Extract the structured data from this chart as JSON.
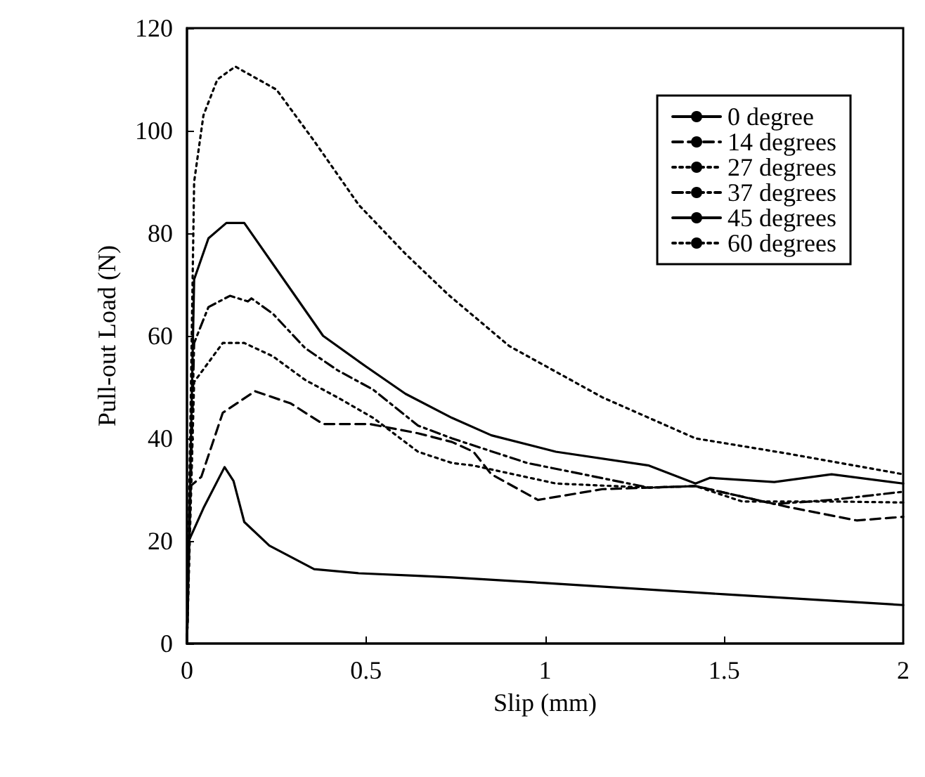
{
  "chart_data": {
    "type": "line",
    "xlabel": "Slip (mm)",
    "ylabel": "Pull-out Load (N)",
    "xlim": [
      0,
      2
    ],
    "xticks": [
      0,
      0.5,
      1,
      1.5,
      2
    ],
    "ylim": [
      0,
      120
    ],
    "yticks": [
      0,
      20,
      40,
      60,
      80,
      100,
      120
    ],
    "grid": false,
    "legend": "top right",
    "marker": "none",
    "series": [
      {
        "name": "0 degree",
        "color": "#000000",
        "line_style": "solid",
        "x": [
          0,
          0.005,
          0.046,
          0.105,
          0.13,
          0.16,
          0.23,
          0.355,
          0.48,
          0.645,
          0.74,
          1.0,
          1.5,
          2.0
        ],
        "values": [
          0,
          20,
          26.4,
          34.4,
          31.7,
          23.7,
          19.1,
          14.5,
          13.7,
          13.2,
          12.9,
          11.8,
          9.6,
          7.5
        ]
      },
      {
        "name": "14 degrees",
        "color": "#000000",
        "line_style": "dashed",
        "x": [
          0,
          0.01,
          0.04,
          0.1,
          0.19,
          0.29,
          0.38,
          0.51,
          0.645,
          0.74,
          0.8,
          0.85,
          0.98,
          1.16,
          1.42,
          1.68,
          1.87,
          2.0
        ],
        "values": [
          0,
          30.7,
          32.5,
          45,
          49.2,
          46.8,
          42.8,
          42.8,
          41,
          39.3,
          37.4,
          33,
          28,
          30.1,
          30.7,
          26.6,
          24,
          24.7
        ]
      },
      {
        "name": "27 degrees",
        "color": "#000000",
        "line_style": "dotted",
        "x": [
          0,
          0.02,
          0.1,
          0.16,
          0.24,
          0.33,
          0.42,
          0.52,
          0.645,
          0.74,
          0.8,
          1.03,
          1.29,
          1.42,
          1.55,
          1.8,
          2.0
        ],
        "values": [
          0,
          51,
          58.6,
          58.6,
          56,
          51.4,
          48,
          44,
          37.4,
          35.2,
          34.7,
          31.2,
          30.4,
          30.7,
          27.7,
          27.7,
          27.5
        ]
      },
      {
        "name": "37 degrees",
        "color": "#000000",
        "line_style": "dashdot",
        "x": [
          0,
          0.02,
          0.06,
          0.12,
          0.17,
          0.18,
          0.24,
          0.33,
          0.42,
          0.52,
          0.645,
          0.74,
          0.95,
          1.29,
          1.42,
          1.64,
          1.8,
          2.0
        ],
        "values": [
          0,
          58.6,
          65.6,
          67.8,
          66.7,
          67.3,
          64.3,
          57.6,
          53.3,
          49.5,
          42.5,
          40,
          35.2,
          30.4,
          30.7,
          27.2,
          28,
          29.6
        ]
      },
      {
        "name": "45 degrees",
        "color": "#000000",
        "line_style": "solid",
        "x": [
          0,
          0.02,
          0.06,
          0.11,
          0.16,
          0.28,
          0.38,
          0.5,
          0.61,
          0.74,
          0.85,
          1.03,
          1.29,
          1.42,
          1.46,
          1.64,
          1.8,
          2.0
        ],
        "values": [
          0,
          71,
          79,
          82,
          82,
          70,
          60,
          54,
          48.7,
          44,
          40.6,
          37.4,
          34.7,
          31.2,
          32.3,
          31.5,
          33,
          31.2
        ]
      },
      {
        "name": "60 degrees",
        "color": "#000000",
        "line_style": "dotted",
        "x": [
          0,
          0.02,
          0.046,
          0.085,
          0.135,
          0.25,
          0.355,
          0.48,
          0.61,
          0.73,
          0.9,
          1.16,
          1.42,
          1.68,
          2.0
        ],
        "values": [
          0,
          90,
          103,
          110,
          112.5,
          108,
          98,
          85.5,
          76,
          68,
          58,
          48,
          40,
          37,
          33
        ]
      }
    ]
  }
}
